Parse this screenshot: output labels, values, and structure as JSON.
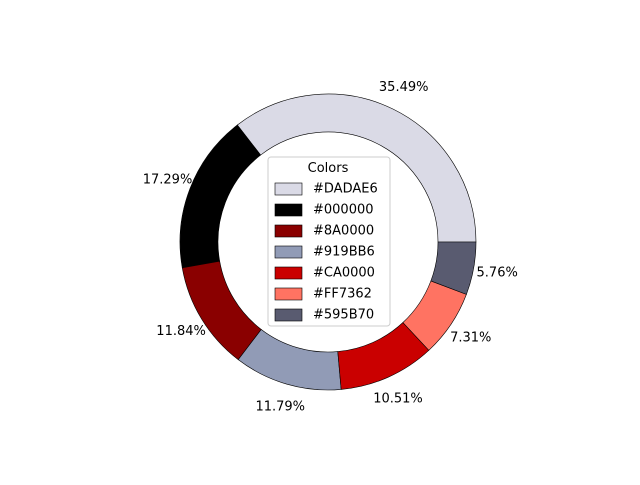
{
  "chart_data": {
    "type": "pie",
    "donut": true,
    "start_angle_deg": 0,
    "direction": "counterclockwise",
    "slices": [
      {
        "label": "#DADAE6",
        "value": 35.49,
        "pct_label": "35.49%",
        "color": "#DADAE6"
      },
      {
        "label": "#000000",
        "value": 17.29,
        "pct_label": "17.29%",
        "color": "#000000"
      },
      {
        "label": "#8A0000",
        "value": 11.84,
        "pct_label": "11.84%",
        "color": "#8A0000"
      },
      {
        "label": "#919BB6",
        "value": 11.79,
        "pct_label": "11.79%",
        "color": "#919BB6"
      },
      {
        "label": "#CA0000",
        "value": 10.51,
        "pct_label": "10.51%",
        "color": "#CA0000"
      },
      {
        "label": "#FF7362",
        "value": 7.31,
        "pct_label": "7.31%",
        "color": "#FF7362"
      },
      {
        "label": "#595B70",
        "value": 5.76,
        "pct_label": "5.76%",
        "color": "#595B70"
      }
    ],
    "legend": {
      "title": "Colors",
      "placement": "center"
    }
  }
}
